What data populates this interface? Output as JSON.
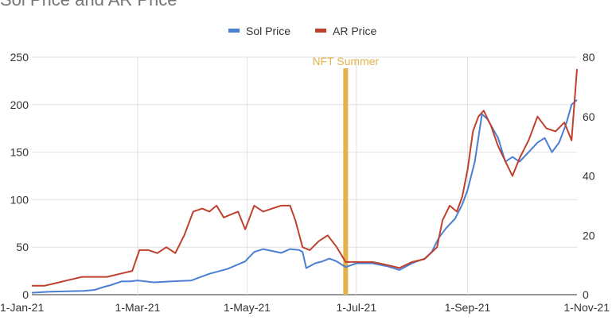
{
  "chart_data": {
    "type": "line",
    "title": "Sol Price and AR Price",
    "x_ticks": [
      "1-Jan-21",
      "1-Mar-21",
      "1-May-21",
      "1-Jul-21",
      "1-Sep-21",
      "1-Nov-21"
    ],
    "x_range": [
      "2021-01-01",
      "2021-11-01"
    ],
    "y_left": {
      "ticks": [
        0,
        50,
        100,
        150,
        200,
        250
      ],
      "range": [
        0,
        250
      ]
    },
    "y_right": {
      "ticks": [
        0,
        20,
        40,
        60,
        80
      ],
      "range": [
        0,
        80
      ]
    },
    "grid": true,
    "legend_position": "top",
    "annotation": {
      "label": "NFT Summer",
      "date": "2021-06-25",
      "color": "#e3b24a"
    },
    "series": [
      {
        "name": "Sol Price",
        "axis": "left",
        "color": "#4a7fd4",
        "points": [
          [
            "2021-01-01",
            2
          ],
          [
            "2021-01-10",
            3
          ],
          [
            "2021-01-20",
            3.5
          ],
          [
            "2021-01-30",
            4
          ],
          [
            "2021-02-05",
            5
          ],
          [
            "2021-02-10",
            8
          ],
          [
            "2021-02-14",
            10
          ],
          [
            "2021-02-20",
            14
          ],
          [
            "2021-02-25",
            14
          ],
          [
            "2021-03-01",
            15
          ],
          [
            "2021-03-10",
            13
          ],
          [
            "2021-03-20",
            14
          ],
          [
            "2021-03-31",
            15
          ],
          [
            "2021-04-10",
            22
          ],
          [
            "2021-04-20",
            27
          ],
          [
            "2021-04-30",
            35
          ],
          [
            "2021-05-05",
            45
          ],
          [
            "2021-05-10",
            48
          ],
          [
            "2021-05-15",
            46
          ],
          [
            "2021-05-20",
            44
          ],
          [
            "2021-05-25",
            48
          ],
          [
            "2021-05-30",
            47
          ],
          [
            "2021-06-01",
            45
          ],
          [
            "2021-06-03",
            28
          ],
          [
            "2021-06-08",
            33
          ],
          [
            "2021-06-12",
            35
          ],
          [
            "2021-06-16",
            38
          ],
          [
            "2021-06-20",
            35
          ],
          [
            "2021-06-25",
            29
          ],
          [
            "2021-07-01",
            33
          ],
          [
            "2021-07-10",
            33
          ],
          [
            "2021-07-18",
            30
          ],
          [
            "2021-07-25",
            26
          ],
          [
            "2021-08-01",
            33
          ],
          [
            "2021-08-08",
            38
          ],
          [
            "2021-08-12",
            45
          ],
          [
            "2021-08-16",
            60
          ],
          [
            "2021-08-20",
            70
          ],
          [
            "2021-08-25",
            80
          ],
          [
            "2021-08-29",
            95
          ],
          [
            "2021-09-01",
            110
          ],
          [
            "2021-09-05",
            140
          ],
          [
            "2021-09-09",
            190
          ],
          [
            "2021-09-12",
            185
          ],
          [
            "2021-09-15",
            175
          ],
          [
            "2021-09-18",
            165
          ],
          [
            "2021-09-22",
            140
          ],
          [
            "2021-09-26",
            145
          ],
          [
            "2021-09-30",
            140
          ],
          [
            "2021-10-05",
            150
          ],
          [
            "2021-10-10",
            160
          ],
          [
            "2021-10-14",
            165
          ],
          [
            "2021-10-18",
            150
          ],
          [
            "2021-10-22",
            160
          ],
          [
            "2021-10-26",
            180
          ],
          [
            "2021-10-29",
            200
          ],
          [
            "2021-11-01",
            205
          ]
        ]
      },
      {
        "name": "AR Price",
        "axis": "right",
        "color": "#c0402e",
        "points": [
          [
            "2021-01-01",
            3
          ],
          [
            "2021-01-08",
            3
          ],
          [
            "2021-01-15",
            4
          ],
          [
            "2021-01-22",
            5
          ],
          [
            "2021-01-29",
            6
          ],
          [
            "2021-02-05",
            6
          ],
          [
            "2021-02-12",
            6
          ],
          [
            "2021-02-19",
            7
          ],
          [
            "2021-02-26",
            8
          ],
          [
            "2021-03-02",
            15
          ],
          [
            "2021-03-07",
            15
          ],
          [
            "2021-03-12",
            14
          ],
          [
            "2021-03-17",
            16
          ],
          [
            "2021-03-22",
            14
          ],
          [
            "2021-03-27",
            20
          ],
          [
            "2021-04-01",
            28
          ],
          [
            "2021-04-06",
            29
          ],
          [
            "2021-04-10",
            28
          ],
          [
            "2021-04-14",
            30
          ],
          [
            "2021-04-18",
            26
          ],
          [
            "2021-04-22",
            27
          ],
          [
            "2021-04-26",
            28
          ],
          [
            "2021-04-30",
            22
          ],
          [
            "2021-05-05",
            30
          ],
          [
            "2021-05-10",
            28
          ],
          [
            "2021-05-15",
            29
          ],
          [
            "2021-05-20",
            30
          ],
          [
            "2021-05-25",
            30
          ],
          [
            "2021-05-28",
            25
          ],
          [
            "2021-06-01",
            16
          ],
          [
            "2021-06-05",
            15
          ],
          [
            "2021-06-10",
            18
          ],
          [
            "2021-06-15",
            20
          ],
          [
            "2021-06-20",
            16
          ],
          [
            "2021-06-25",
            11
          ],
          [
            "2021-07-01",
            11
          ],
          [
            "2021-07-10",
            11
          ],
          [
            "2021-07-18",
            10
          ],
          [
            "2021-07-25",
            9
          ],
          [
            "2021-08-01",
            11
          ],
          [
            "2021-08-08",
            12
          ],
          [
            "2021-08-15",
            16
          ],
          [
            "2021-08-18",
            25
          ],
          [
            "2021-08-22",
            30
          ],
          [
            "2021-08-26",
            28
          ],
          [
            "2021-08-29",
            33
          ],
          [
            "2021-09-01",
            42
          ],
          [
            "2021-09-04",
            55
          ],
          [
            "2021-09-07",
            60
          ],
          [
            "2021-09-10",
            62
          ],
          [
            "2021-09-14",
            57
          ],
          [
            "2021-09-18",
            50
          ],
          [
            "2021-09-22",
            45
          ],
          [
            "2021-09-26",
            40
          ],
          [
            "2021-09-30",
            46
          ],
          [
            "2021-10-05",
            52
          ],
          [
            "2021-10-10",
            60
          ],
          [
            "2021-10-15",
            56
          ],
          [
            "2021-10-20",
            55
          ],
          [
            "2021-10-25",
            58
          ],
          [
            "2021-10-29",
            52
          ],
          [
            "2021-11-01",
            76
          ]
        ]
      }
    ]
  }
}
